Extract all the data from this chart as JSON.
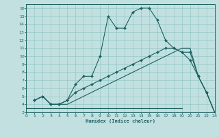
{
  "background_color": "#c2e0e0",
  "grid_color": "#96c8c8",
  "line_color": "#1a6060",
  "xlabel": "Humidex (Indice chaleur)",
  "xlim": [
    0,
    23
  ],
  "ylim": [
    3,
    16.5
  ],
  "xticks": [
    0,
    1,
    2,
    3,
    4,
    5,
    6,
    7,
    8,
    9,
    10,
    11,
    12,
    13,
    14,
    15,
    16,
    17,
    18,
    19,
    20,
    21,
    22,
    23
  ],
  "yticks": [
    3,
    4,
    5,
    6,
    7,
    8,
    9,
    10,
    11,
    12,
    13,
    14,
    15,
    16
  ],
  "curve1_x": [
    1,
    2,
    3,
    4,
    5,
    6,
    7,
    8,
    9,
    10,
    11,
    12,
    13,
    14,
    15,
    16,
    17,
    18,
    19,
    20,
    21,
    22,
    23
  ],
  "curve1_y": [
    4.5,
    5.0,
    4.0,
    4.0,
    4.5,
    6.5,
    7.5,
    7.5,
    10.0,
    15.0,
    13.5,
    13.5,
    15.5,
    16.0,
    16.0,
    14.5,
    12.0,
    11.0,
    10.5,
    9.5,
    7.5,
    5.5,
    3.0
  ],
  "curve2_x": [
    1,
    2,
    3,
    4,
    5,
    6,
    7,
    8,
    9,
    10,
    11,
    12,
    13,
    14,
    15,
    16,
    17,
    18,
    19,
    20,
    21,
    22,
    23
  ],
  "curve2_y": [
    4.5,
    5.0,
    4.0,
    4.0,
    4.5,
    5.5,
    6.0,
    6.5,
    7.0,
    7.5,
    8.0,
    8.5,
    9.0,
    9.5,
    10.0,
    10.5,
    11.0,
    11.0,
    10.5,
    10.5,
    7.5,
    5.5,
    3.0
  ],
  "curve3_x": [
    1,
    2,
    3,
    4,
    5,
    6,
    7,
    8,
    9,
    10,
    11,
    12,
    13,
    14,
    15,
    16,
    17,
    18,
    19,
    20,
    21,
    22,
    23
  ],
  "curve3_y": [
    4.5,
    5.0,
    4.0,
    4.0,
    4.0,
    4.5,
    5.0,
    5.5,
    6.0,
    6.5,
    7.0,
    7.5,
    8.0,
    8.5,
    9.0,
    9.5,
    10.0,
    10.5,
    11.0,
    11.0,
    7.5,
    5.5,
    3.0
  ],
  "curve4_x": [
    0,
    4,
    5,
    6,
    7,
    8,
    9,
    10,
    11,
    12,
    13,
    18,
    19
  ],
  "curve4_y": [
    3.5,
    3.5,
    3.5,
    3.5,
    3.5,
    3.5,
    3.5,
    3.5,
    3.5,
    3.5,
    3.5,
    3.5,
    3.5
  ]
}
